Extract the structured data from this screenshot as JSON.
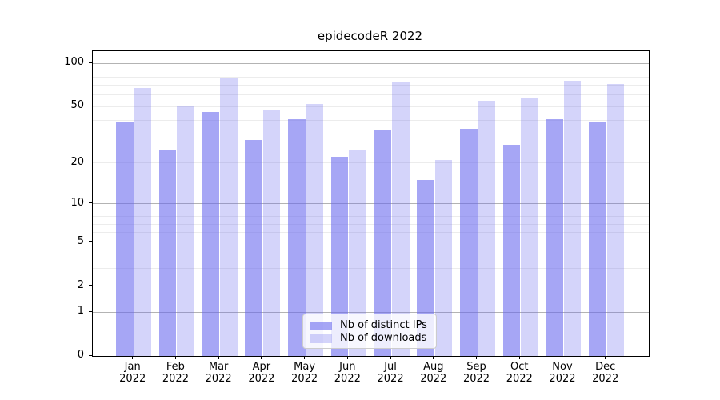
{
  "figure": {
    "title": "epidecodeR 2022"
  },
  "axes": {
    "y_tick_labels": [
      "0",
      "1",
      "2",
      "5",
      "10",
      "20",
      "50",
      "100"
    ],
    "x_months": [
      "Jan",
      "Feb",
      "Mar",
      "Apr",
      "May",
      "Jun",
      "Jul",
      "Aug",
      "Sep",
      "Oct",
      "Nov",
      "Dec"
    ],
    "x_year": "2022"
  },
  "legend": {
    "items": [
      {
        "label": "Nb of distinct IPs",
        "swatch": "dark"
      },
      {
        "label": "Nb of downloads",
        "swatch": "light"
      }
    ]
  },
  "colors": {
    "bar_dark": "rgba(102,102,238,0.58)",
    "bar_light": "rgba(102,102,238,0.28)",
    "grid_minor": "#ececec",
    "grid_major": "#b3b3b3",
    "spine": "#000000"
  },
  "chart_data": {
    "type": "bar",
    "title": "epidecodeR 2022",
    "categories": [
      "Jan 2022",
      "Feb 2022",
      "Mar 2022",
      "Apr 2022",
      "May 2022",
      "Jun 2022",
      "Jul 2022",
      "Aug 2022",
      "Sep 2022",
      "Oct 2022",
      "Nov 2022",
      "Dec 2022"
    ],
    "series": [
      {
        "name": "Nb of distinct IPs",
        "values": [
          39,
          25,
          46,
          29,
          41,
          22,
          34,
          15,
          35,
          27,
          41,
          39
        ]
      },
      {
        "name": "Nb of downloads",
        "values": [
          67,
          51,
          80,
          47,
          52,
          25,
          74,
          21,
          55,
          57,
          76,
          72
        ]
      }
    ],
    "yscale": "log1p",
    "y_ticks": [
      0,
      1,
      2,
      5,
      10,
      20,
      50,
      100
    ],
    "y_minor_gridlines": [
      2,
      3,
      4,
      5,
      6,
      7,
      8,
      9,
      20,
      30,
      40,
      50,
      60,
      70,
      80,
      90
    ],
    "y_major_gridlines": [
      1,
      10,
      100
    ],
    "ylim": [
      0,
      110
    ],
    "grid": true,
    "legend_position": "inside-lower-center"
  }
}
